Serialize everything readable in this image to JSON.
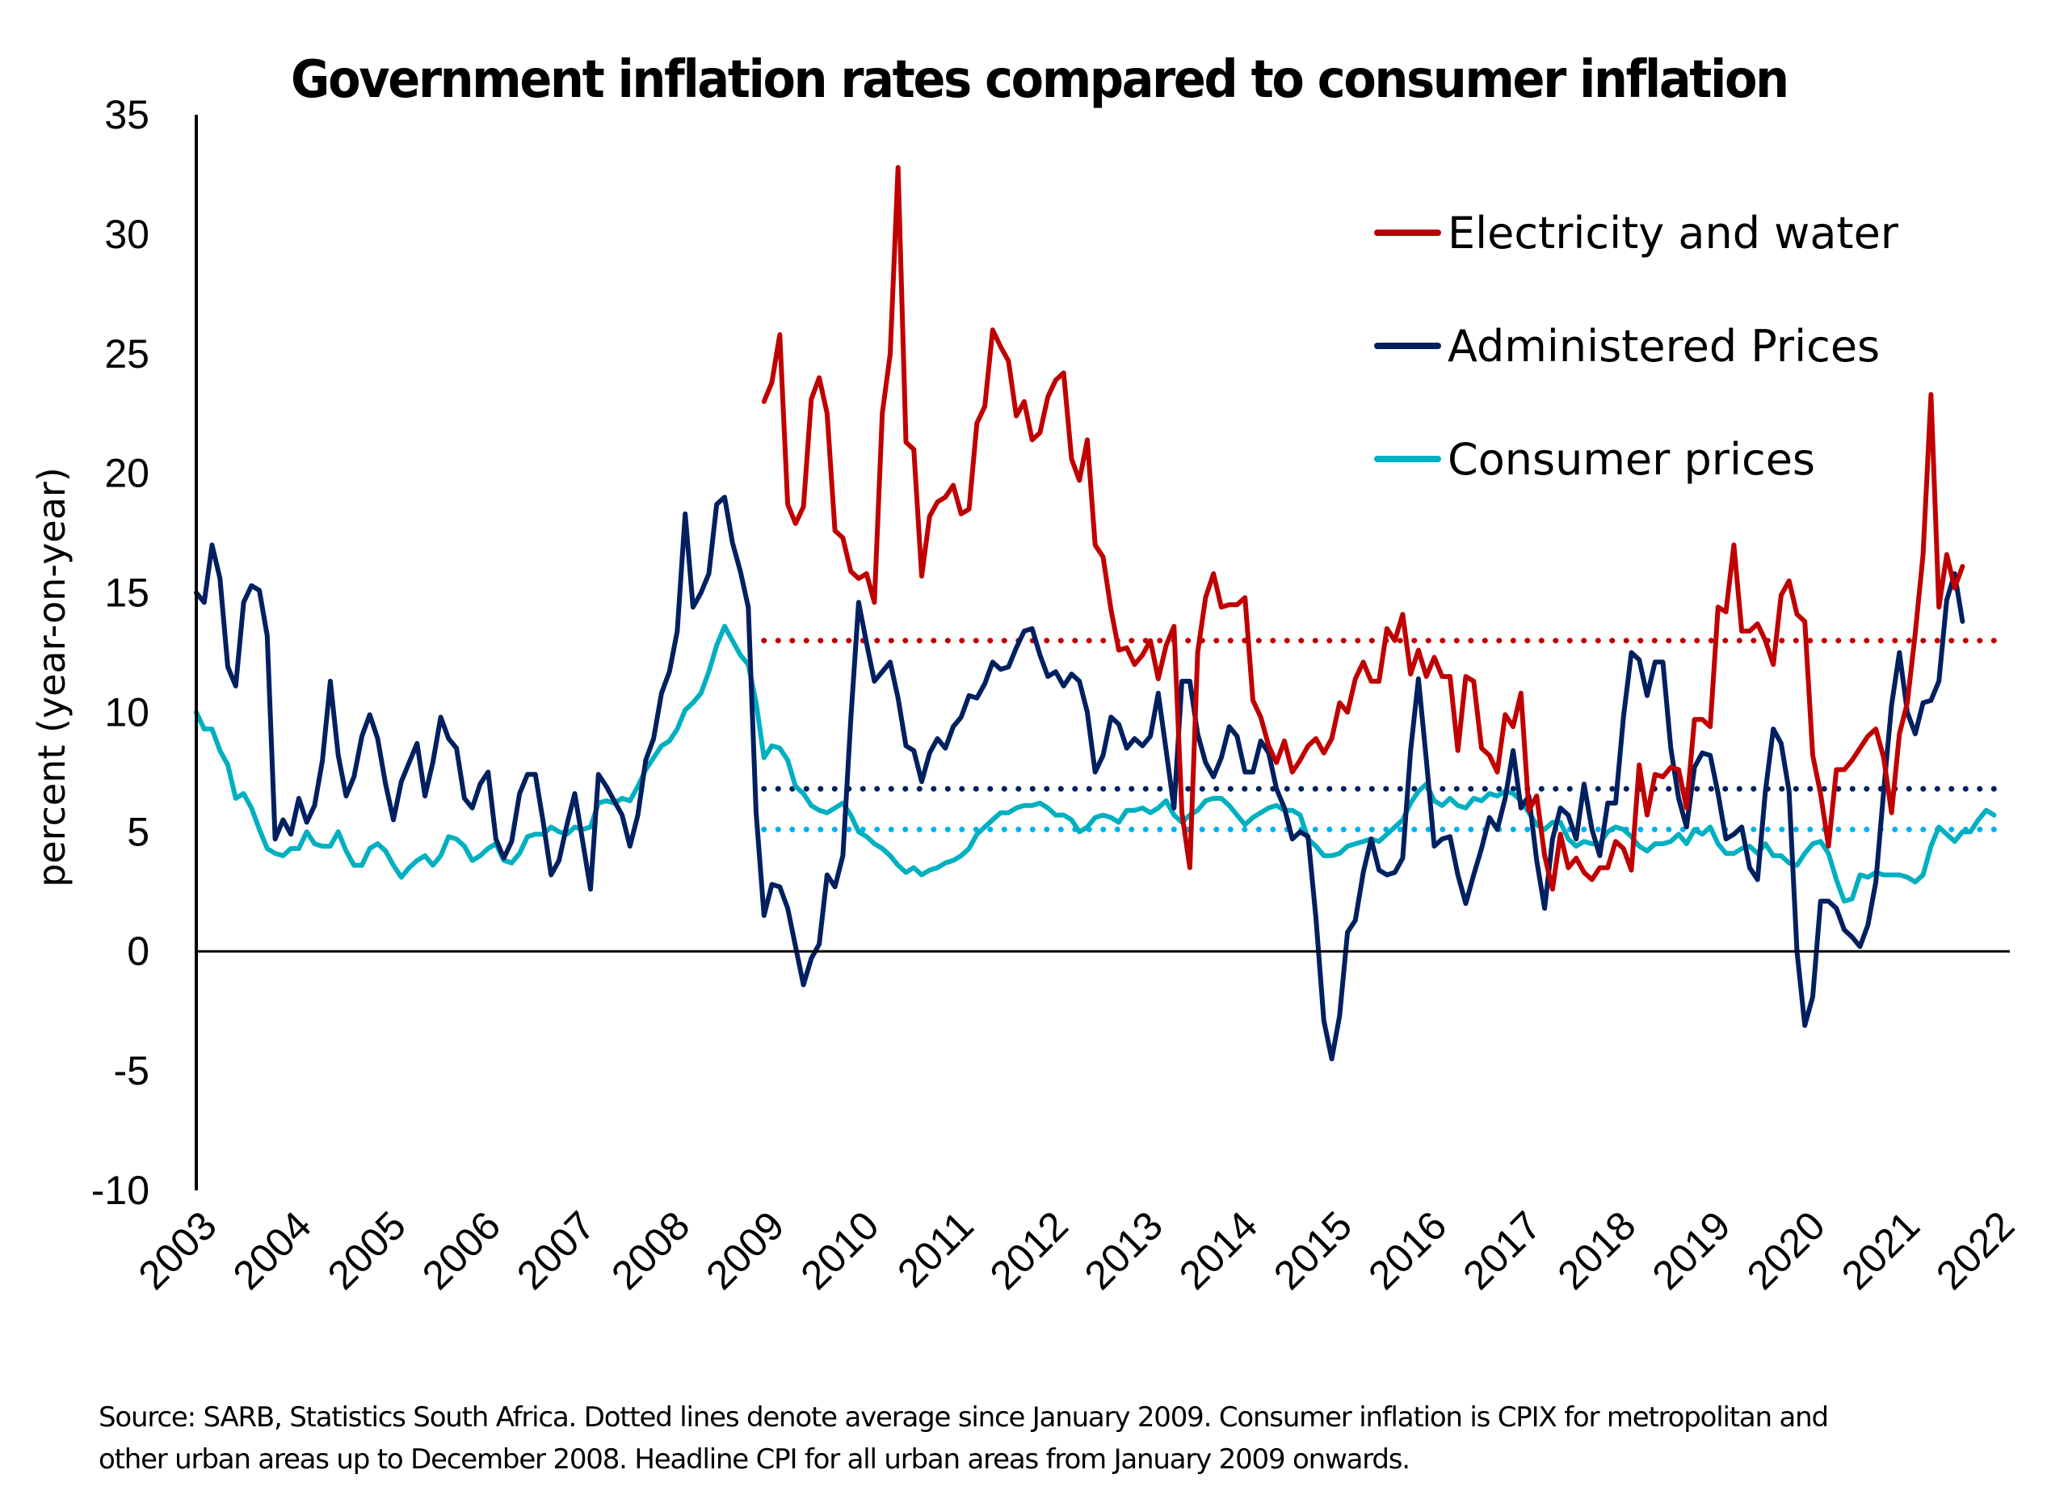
{
  "chart_data": {
    "type": "line",
    "title": "Government inflation rates compared to consumer inflation",
    "xlabel": "",
    "ylabel": "percent (year-on-year)",
    "ylim": [
      -10,
      35
    ],
    "yticks": [
      35,
      30,
      25,
      20,
      15,
      10,
      5,
      0,
      -5,
      -10
    ],
    "x_start": "2003-01",
    "x_end": "2022-03",
    "frequency": "monthly",
    "xticks": [
      "2003",
      "2004",
      "2005",
      "2006",
      "2007",
      "2008",
      "2009",
      "2010",
      "2011",
      "2012",
      "2013",
      "2014",
      "2015",
      "2016",
      "2017",
      "2018",
      "2019",
      "2020",
      "2021",
      "2022"
    ],
    "grid": false,
    "legend_position": "top-right",
    "series": [
      {
        "name": "Electricity and water",
        "color": "#C00000",
        "start": "2009-01",
        "values": [
          23.0,
          23.8,
          25.8,
          18.7,
          17.9,
          18.6,
          23.1,
          24.0,
          22.5,
          17.6,
          17.3,
          15.9,
          15.6,
          15.8,
          14.6,
          22.5,
          25.0,
          32.8,
          21.3,
          21.0,
          15.7,
          18.2,
          18.8,
          19.0,
          19.5,
          18.3,
          18.5,
          22.1,
          22.8,
          26.0,
          25.3,
          24.7,
          22.4,
          23.0,
          21.4,
          21.7,
          23.2,
          23.9,
          24.2,
          20.6,
          19.7,
          21.4,
          17.0,
          16.5,
          14.3,
          12.6,
          12.7,
          12.0,
          12.4,
          13.0,
          11.4,
          12.8,
          13.6,
          5.8,
          3.5,
          12.5,
          14.8,
          15.8,
          14.4,
          14.5,
          14.5,
          14.8,
          10.5,
          9.8,
          8.6,
          7.9,
          8.8,
          7.5,
          8.0,
          8.6,
          8.9,
          8.3,
          8.9,
          10.4,
          10.0,
          11.4,
          12.1,
          11.3,
          11.3,
          13.5,
          13.0,
          14.1,
          11.6,
          12.6,
          11.5,
          12.3,
          11.5,
          11.5,
          8.4,
          11.5,
          11.3,
          8.5,
          8.2,
          7.5,
          9.9,
          9.4,
          10.8,
          5.9,
          6.5,
          4.0,
          2.6,
          4.9,
          3.5,
          3.9,
          3.3,
          3.0,
          3.5,
          3.5,
          4.6,
          4.3,
          3.4,
          7.8,
          5.7,
          7.4,
          7.3,
          7.7,
          7.6,
          6.0,
          9.7,
          9.7,
          9.4,
          14.4,
          14.2,
          17.0,
          13.4,
          13.4,
          13.7,
          13.0,
          12.0,
          14.9,
          15.5,
          14.1,
          13.8,
          8.2,
          6.6,
          4.4,
          7.6,
          7.6,
          8.0,
          8.5,
          9.0,
          9.3,
          8.1,
          5.8,
          9.1,
          10.4,
          13.3,
          16.6,
          23.3,
          14.4,
          16.6,
          15.2,
          16.1
        ]
      },
      {
        "name": "Administered Prices",
        "color": "#002060",
        "start": "2003-01",
        "values": [
          15.0,
          14.6,
          17.0,
          15.6,
          11.9,
          11.1,
          14.6,
          15.3,
          15.1,
          13.2,
          4.7,
          5.5,
          4.9,
          6.4,
          5.4,
          6.1,
          8.0,
          11.3,
          8.2,
          6.5,
          7.3,
          9.0,
          9.9,
          8.9,
          7.0,
          5.5,
          7.1,
          7.9,
          8.7,
          6.5,
          7.9,
          9.8,
          8.9,
          8.5,
          6.4,
          6.0,
          7.0,
          7.5,
          4.7,
          3.9,
          4.6,
          6.6,
          7.4,
          7.4,
          5.4,
          3.2,
          3.8,
          5.3,
          6.6,
          4.6,
          2.6,
          7.4,
          6.9,
          6.3,
          5.7,
          4.4,
          5.7,
          8.0,
          8.9,
          10.8,
          11.7,
          13.4,
          18.3,
          14.4,
          15.0,
          15.8,
          18.7,
          19.0,
          17.1,
          15.9,
          14.4,
          5.8,
          1.5,
          2.8,
          2.7,
          1.8,
          0.2,
          -1.4,
          -0.3,
          0.3,
          3.2,
          2.7,
          4.0,
          9.7,
          14.6,
          12.9,
          11.3,
          11.7,
          12.1,
          10.6,
          8.6,
          8.4,
          7.1,
          8.3,
          8.9,
          8.5,
          9.4,
          9.8,
          10.7,
          10.6,
          11.2,
          12.1,
          11.8,
          11.9,
          12.7,
          13.4,
          13.5,
          12.4,
          11.5,
          11.7,
          11.1,
          11.6,
          11.3,
          10.0,
          7.5,
          8.2,
          9.8,
          9.5,
          8.5,
          8.9,
          8.6,
          9.0,
          10.8,
          8.4,
          6.0,
          11.3,
          11.3,
          9.1,
          7.9,
          7.3,
          8.1,
          9.4,
          9.0,
          7.5,
          7.5,
          8.8,
          8.3,
          6.8,
          6.0,
          4.7,
          5.0,
          4.8,
          1.4,
          -2.9,
          -4.5,
          -2.7,
          0.8,
          1.3,
          3.3,
          4.7,
          3.4,
          3.2,
          3.3,
          3.9,
          8.4,
          11.4,
          8.0,
          4.4,
          4.7,
          4.8,
          3.2,
          2.0,
          3.2,
          4.3,
          5.6,
          5.1,
          6.4,
          8.4,
          6.0,
          6.5,
          3.8,
          1.8,
          4.7,
          6.0,
          5.7,
          4.7,
          7.0,
          5.1,
          4.0,
          6.2,
          6.2,
          9.8,
          12.5,
          12.2,
          10.7,
          12.1,
          12.1,
          8.5,
          6.4,
          5.2,
          7.7,
          8.3,
          8.2,
          6.6,
          4.7,
          4.9,
          5.2,
          3.5,
          3.0,
          6.7,
          9.3,
          8.7,
          6.7,
          0.0,
          -3.1,
          -1.9,
          2.1,
          2.1,
          1.8,
          0.9,
          0.6,
          0.2,
          1.1,
          2.9,
          6.7,
          10.3,
          12.5,
          10.0,
          9.1,
          10.4,
          10.5,
          11.3,
          14.7,
          15.8,
          13.8
        ]
      },
      {
        "name": "Consumer prices",
        "color": "#00B0C0",
        "start": "2003-01",
        "values": [
          10.0,
          9.3,
          9.3,
          8.4,
          7.8,
          6.4,
          6.6,
          6.0,
          5.1,
          4.3,
          4.1,
          4.0,
          4.3,
          4.3,
          5.0,
          4.5,
          4.4,
          4.4,
          5.0,
          4.2,
          3.6,
          3.6,
          4.3,
          4.5,
          4.2,
          3.6,
          3.1,
          3.5,
          3.8,
          4.0,
          3.6,
          4.0,
          4.8,
          4.7,
          4.4,
          3.8,
          4.0,
          4.3,
          4.5,
          3.8,
          3.7,
          4.1,
          4.8,
          4.9,
          4.9,
          5.2,
          5.0,
          4.9,
          5.2,
          5.1,
          5.2,
          6.2,
          6.3,
          6.2,
          6.4,
          6.3,
          6.9,
          7.6,
          8.1,
          8.6,
          8.8,
          9.3,
          10.1,
          10.4,
          10.8,
          11.7,
          12.8,
          13.6,
          13.0,
          12.4,
          12.0,
          10.4,
          8.1,
          8.6,
          8.5,
          8.0,
          6.9,
          6.6,
          6.1,
          5.9,
          5.8,
          6.0,
          6.2,
          5.7,
          5.0,
          4.8,
          4.5,
          4.3,
          4.0,
          3.6,
          3.3,
          3.5,
          3.2,
          3.4,
          3.5,
          3.7,
          3.8,
          4.0,
          4.3,
          4.9,
          5.2,
          5.5,
          5.8,
          5.8,
          6.0,
          6.1,
          6.1,
          6.2,
          6.0,
          5.7,
          5.7,
          5.5,
          5.0,
          5.2,
          5.6,
          5.7,
          5.6,
          5.4,
          5.9,
          5.9,
          6.0,
          5.8,
          6.0,
          6.3,
          5.7,
          5.4,
          5.7,
          5.9,
          6.3,
          6.4,
          6.4,
          6.1,
          5.7,
          5.3,
          5.6,
          5.8,
          6.0,
          6.1,
          5.9,
          5.9,
          5.7,
          4.7,
          4.4,
          4.0,
          4.0,
          4.1,
          4.4,
          4.5,
          4.6,
          4.7,
          4.6,
          4.9,
          5.2,
          5.5,
          6.2,
          6.7,
          7.0,
          6.3,
          6.1,
          6.4,
          6.1,
          6.0,
          6.4,
          6.3,
          6.6,
          6.5,
          6.7,
          6.6,
          6.3,
          5.8,
          5.3,
          5.1,
          5.4,
          5.4,
          4.7,
          4.4,
          4.6,
          4.5,
          4.5,
          5.0,
          5.2,
          5.1,
          4.8,
          4.4,
          4.2,
          4.5,
          4.5,
          4.6,
          4.9,
          4.5,
          5.1,
          4.9,
          5.2,
          4.5,
          4.1,
          4.1,
          4.3,
          4.4,
          4.1,
          4.5,
          4.0,
          4.0,
          3.7,
          3.6,
          4.1,
          4.5,
          4.6,
          4.1,
          3.0,
          2.1,
          2.2,
          3.2,
          3.1,
          3.3,
          3.2,
          3.2,
          3.2,
          3.1,
          2.9,
          3.2,
          4.4,
          5.2,
          4.9,
          4.6,
          5.0,
          5.0,
          5.5,
          5.9,
          5.7
        ]
      }
    ],
    "reference_lines": [
      {
        "name": "Electricity and water average since January 2009",
        "value": 13.0,
        "color": "#C00000",
        "style": "dotted",
        "from": "2009-01"
      },
      {
        "name": "Administered Prices average since January 2009",
        "value": 6.8,
        "color": "#002060",
        "style": "dotted",
        "from": "2009-01"
      },
      {
        "name": "Consumer prices average since January 2009",
        "value": 5.1,
        "color": "#00B0F0",
        "style": "dotted",
        "from": "2009-01"
      }
    ],
    "footnote": "Source: SARB, Statistics South Africa. Dotted lines denote average since January 2009. Consumer inflation is CPIX for metropolitan and other urban areas up to December 2008. Headline CPI for all urban areas from January 2009 onwards."
  },
  "footnote_lines": [
    "Source: SARB, Statistics South Africa. Dotted lines denote average since January 2009. Consumer inflation is CPIX for metropolitan and",
    "other urban areas up to December 2008. Headline CPI for all urban areas from January 2009 onwards."
  ]
}
